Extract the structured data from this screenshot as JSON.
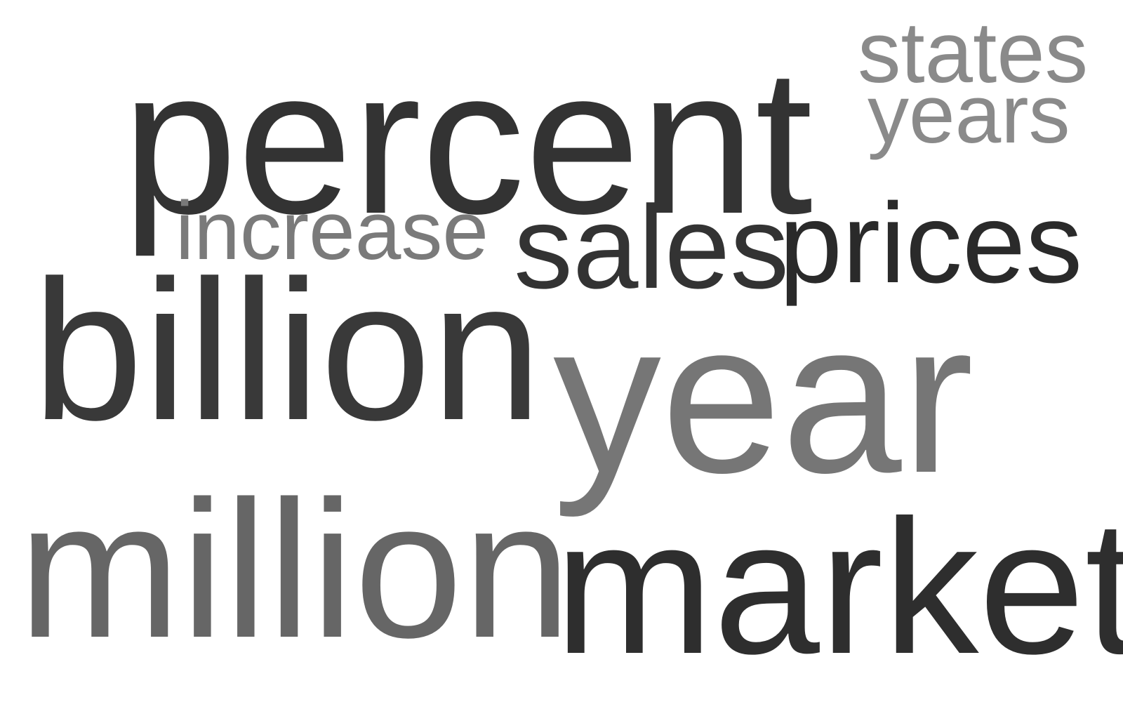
{
  "words": {
    "percent": {
      "text": "percent",
      "color": "#333333"
    },
    "states": {
      "text": "states",
      "color": "#8a8a8a"
    },
    "years": {
      "text": "years",
      "color": "#8a8a8a"
    },
    "increase": {
      "text": "increase",
      "color": "#7a7a7a"
    },
    "sales": {
      "text": "sales",
      "color": "#333333"
    },
    "prices": {
      "text": "prices",
      "color": "#2a2a2a"
    },
    "billion": {
      "text": "billion",
      "color": "#393939"
    },
    "year": {
      "text": "year",
      "color": "#767676"
    },
    "million": {
      "text": "million",
      "color": "#666666"
    },
    "market": {
      "text": "market",
      "color": "#2e2e2e"
    }
  }
}
